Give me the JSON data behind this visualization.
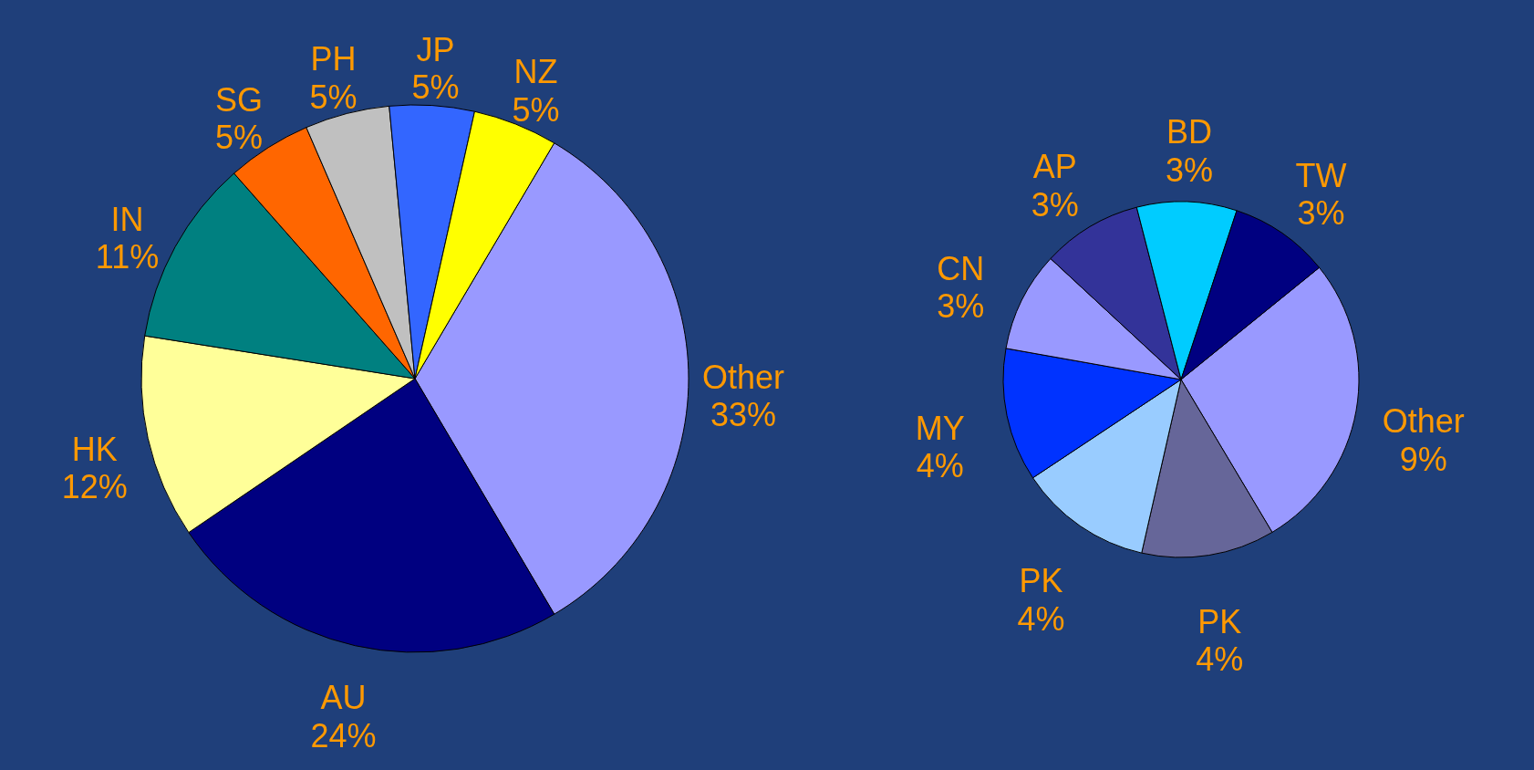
{
  "chart_data": [
    {
      "type": "pie",
      "categories": [
        "Other",
        "AU",
        "HK",
        "IN",
        "SG",
        "PH",
        "JP",
        "NZ"
      ],
      "values": [
        33,
        24,
        12,
        11,
        5,
        5,
        5,
        5
      ],
      "value_labels": [
        "33%",
        "24%",
        "12%",
        "11%",
        "5%",
        "5%",
        "5%",
        "5%"
      ],
      "colors": [
        "#9999ff",
        "#000080",
        "#ffff99",
        "#008080",
        "#ff6600",
        "#c0c0c0",
        "#3366ff",
        "#ffff00"
      ]
    },
    {
      "type": "pie",
      "categories": [
        "Other",
        "PK",
        "PK",
        "MY",
        "CN",
        "AP",
        "BD",
        "TW"
      ],
      "values": [
        9,
        4,
        4,
        4,
        3,
        3,
        3,
        3
      ],
      "value_labels": [
        "9%",
        "4%",
        "4%",
        "4%",
        "3%",
        "3%",
        "3%",
        "3%"
      ],
      "colors": [
        "#9999ff",
        "#666699",
        "#99ccff",
        "#0033ff",
        "#9999ff",
        "#333399",
        "#00ccff",
        "#000080"
      ]
    }
  ]
}
